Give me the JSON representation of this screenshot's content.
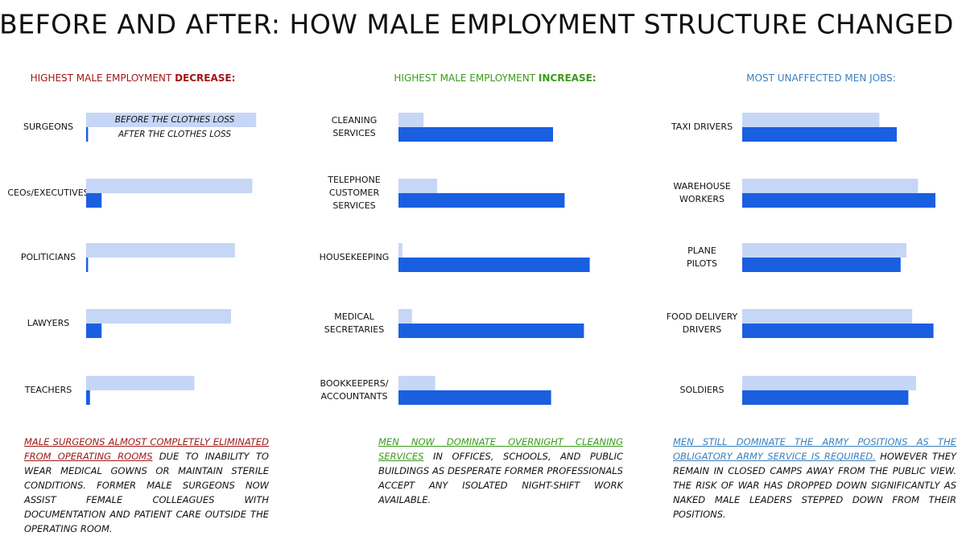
{
  "title": "BEFORE AND AFTER:  HOW MALE EMPLOYMENT STRUCTURE CHANGED",
  "chart_data": [
    {
      "type": "bar",
      "orientation": "horizontal",
      "title": "HIGHEST MALE EMPLOYMENT",
      "title_emphasis": "DECREASE:",
      "title_color": "#a01818",
      "categories": [
        [
          "SURGEONS"
        ],
        [
          "CEOs/EXECUTIVES"
        ],
        [
          "POLITICIANS"
        ],
        [
          "LAWYERS"
        ],
        [
          "TEACHERS"
        ]
      ],
      "series": [
        {
          "name": "BEFORE THE CLOTHES LOSS",
          "color": "#c6d6f6",
          "values": [
            88,
            86,
            77,
            75,
            56
          ]
        },
        {
          "name": "AFTER THE CLOTHES LOSS",
          "color": "#1a5fe0",
          "values": [
            1,
            8,
            1,
            8,
            2
          ]
        }
      ],
      "legend": true,
      "note_emphasis": "MALE SURGEONS ALMOST COMPLETELY ELIMINATED FROM OPERATING ROOMS",
      "note": "DUE TO INABILITY TO WEAR MEDICAL GOWNS OR MAINTAIN STERILE CONDITIONS. FORMER MALE SURGEONS NOW ASSIST FEMALE COLLEAGUES WITH DOCUMENTATION AND PATIENT CARE OUTSIDE THE OPERATING ROOM."
    },
    {
      "type": "bar",
      "orientation": "horizontal",
      "title": "HIGHEST MALE EMPLOYMENT",
      "title_emphasis": "INCREASE:",
      "title_color": "#3a9a1a",
      "categories": [
        [
          "CLEANING",
          "SERVICES"
        ],
        [
          "TELEPHONE",
          "CUSTOMER",
          "SERVICES"
        ],
        [
          "HOUSEKEEPING"
        ],
        [
          "MEDICAL",
          "SECRETARIES"
        ],
        [
          "BOOKKEEPERS/",
          "ACCOUNTANTS"
        ]
      ],
      "series": [
        {
          "color": "#c6d6f6",
          "values": [
            13,
            20,
            2,
            7,
            19
          ]
        },
        {
          "color": "#1a5fe0",
          "values": [
            80,
            86,
            99,
            96,
            79
          ]
        }
      ],
      "legend": false,
      "note_emphasis": "MEN NOW DOMINATE OVERNIGHT CLEANING SERVICES",
      "note": "IN OFFICES, SCHOOLS, AND PUBLIC BUILDINGS AS DESPERATE FORMER PROFESSIONALS ACCEPT ANY ISOLATED NIGHT-SHIFT WORK AVAILABLE."
    },
    {
      "type": "bar",
      "orientation": "horizontal",
      "title": "MOST UNAFFECTED MEN JOBS:",
      "title_color": "#3a7fbf",
      "categories": [
        [
          "TAXI DRIVERS"
        ],
        [
          "WAREHOUSE",
          "WORKERS"
        ],
        [
          "PLANE",
          "PILOTS"
        ],
        [
          "FOOD DELIVERY",
          "DRIVERS"
        ],
        [
          "SOLDIERS"
        ]
      ],
      "series": [
        {
          "color": "#c6d6f6",
          "values": [
            71,
            91,
            85,
            88,
            90
          ]
        },
        {
          "color": "#1a5fe0",
          "values": [
            80,
            100,
            82,
            99,
            86
          ]
        }
      ],
      "legend": false,
      "note_emphasis": "MEN STILL DOMINATE THE ARMY POSITIONS AS THE OBLIGATORY ARMY SERVICE IS REQUIRED.",
      "note": "HOWEVER THEY REMAIN IN CLOSED CAMPS AWAY FROM THE PUBLIC VIEW. THE RISK OF WAR HAS DROPPED DOWN SIGNIFICANTLY AS NAKED MALE LEADERS STEPPED DOWN FROM THEIR POSITIONS."
    }
  ]
}
